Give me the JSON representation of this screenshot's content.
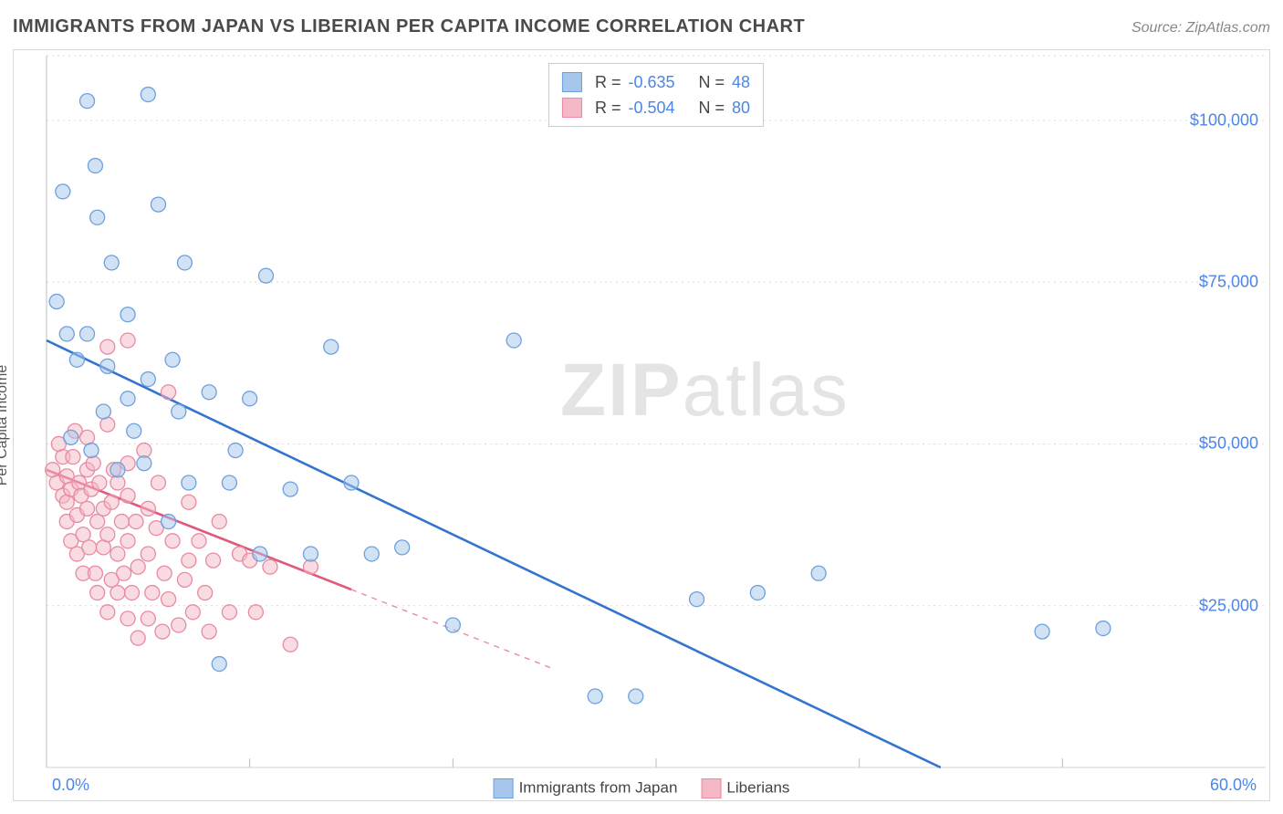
{
  "title": "IMMIGRANTS FROM JAPAN VS LIBERIAN PER CAPITA INCOME CORRELATION CHART",
  "source": "Source: ZipAtlas.com",
  "watermark": {
    "bold": "ZIP",
    "light": "atlas"
  },
  "chart": {
    "type": "scatter",
    "background_color": "#ffffff",
    "grid_color": "#d9d9d9",
    "axis_color": "#888888",
    "ylabel": "Per Capita Income",
    "ylabel_fontsize": 16,
    "tick_color": "#4a86e8",
    "tick_fontsize": 18,
    "xlim": [
      0,
      60
    ],
    "ylim": [
      0,
      110000
    ],
    "xticks_labeled": {
      "0": "0.0%",
      "60": "60.0%"
    },
    "xticks_minor": [
      10,
      20,
      30,
      40,
      50
    ],
    "yticks": [
      25000,
      50000,
      75000,
      100000
    ],
    "ytick_labels": [
      "$25,000",
      "$50,000",
      "$75,000",
      "$100,000"
    ],
    "grid_dash": "2,4",
    "marker_radius": 8,
    "marker_opacity": 0.5,
    "marker_stroke_width": 1.3,
    "line_width": 2.6
  },
  "series": [
    {
      "name": "Immigrants from Japan",
      "color_fill": "#a6c6ec",
      "color_stroke": "#6da0de",
      "line_color": "#3374cf",
      "R": "-0.635",
      "N": "48",
      "trend": {
        "x1": 0,
        "y1": 66000,
        "x2": 44,
        "y2": 0
      },
      "trend_dash_x": 60,
      "points": [
        [
          0.5,
          72000
        ],
        [
          0.8,
          89000
        ],
        [
          1.0,
          67000
        ],
        [
          1.2,
          51000
        ],
        [
          1.5,
          63000
        ],
        [
          2.0,
          103000
        ],
        [
          2.0,
          67000
        ],
        [
          2.2,
          49000
        ],
        [
          2.4,
          93000
        ],
        [
          2.5,
          85000
        ],
        [
          2.8,
          55000
        ],
        [
          3.0,
          62000
        ],
        [
          3.2,
          78000
        ],
        [
          3.5,
          46000
        ],
        [
          4.0,
          70000
        ],
        [
          4.0,
          57000
        ],
        [
          4.3,
          52000
        ],
        [
          4.8,
          47000
        ],
        [
          5.0,
          104000
        ],
        [
          5.0,
          60000
        ],
        [
          5.5,
          87000
        ],
        [
          6.0,
          38000
        ],
        [
          6.2,
          63000
        ],
        [
          6.5,
          55000
        ],
        [
          6.8,
          78000
        ],
        [
          7.0,
          44000
        ],
        [
          8.0,
          58000
        ],
        [
          8.5,
          16000
        ],
        [
          9.0,
          44000
        ],
        [
          9.3,
          49000
        ],
        [
          10.0,
          57000
        ],
        [
          10.5,
          33000
        ],
        [
          10.8,
          76000
        ],
        [
          12.0,
          43000
        ],
        [
          13.0,
          33000
        ],
        [
          14.0,
          65000
        ],
        [
          15.0,
          44000
        ],
        [
          16.0,
          33000
        ],
        [
          17.5,
          34000
        ],
        [
          20.0,
          22000
        ],
        [
          23.0,
          66000
        ],
        [
          27.0,
          11000
        ],
        [
          29.0,
          11000
        ],
        [
          32.0,
          26000
        ],
        [
          35.0,
          27000
        ],
        [
          38.0,
          30000
        ],
        [
          49.0,
          21000
        ],
        [
          52.0,
          21500
        ]
      ]
    },
    {
      "name": "Liberians",
      "color_fill": "#f4b8c6",
      "color_stroke": "#e88aa2",
      "line_color": "#e05a7a",
      "R": "-0.504",
      "N": "80",
      "trend": {
        "x1": 0,
        "y1": 46000,
        "x2": 15,
        "y2": 27500
      },
      "trend_dash_x": 25,
      "points": [
        [
          0.3,
          46000
        ],
        [
          0.5,
          44000
        ],
        [
          0.6,
          50000
        ],
        [
          0.8,
          42000
        ],
        [
          0.8,
          48000
        ],
        [
          1.0,
          38000
        ],
        [
          1.0,
          41000
        ],
        [
          1.0,
          45000
        ],
        [
          1.2,
          35000
        ],
        [
          1.2,
          43000
        ],
        [
          1.3,
          48000
        ],
        [
          1.4,
          52000
        ],
        [
          1.5,
          39000
        ],
        [
          1.5,
          33000
        ],
        [
          1.6,
          44000
        ],
        [
          1.7,
          42000
        ],
        [
          1.8,
          36000
        ],
        [
          1.8,
          30000
        ],
        [
          2.0,
          46000
        ],
        [
          2.0,
          40000
        ],
        [
          2.0,
          51000
        ],
        [
          2.1,
          34000
        ],
        [
          2.2,
          43000
        ],
        [
          2.3,
          47000
        ],
        [
          2.4,
          30000
        ],
        [
          2.5,
          38000
        ],
        [
          2.5,
          27000
        ],
        [
          2.6,
          44000
        ],
        [
          2.8,
          34000
        ],
        [
          2.8,
          40000
        ],
        [
          3.0,
          53000
        ],
        [
          3.0,
          36000
        ],
        [
          3.0,
          24000
        ],
        [
          3.0,
          65000
        ],
        [
          3.2,
          29000
        ],
        [
          3.2,
          41000
        ],
        [
          3.3,
          46000
        ],
        [
          3.5,
          33000
        ],
        [
          3.5,
          44000
        ],
        [
          3.5,
          27000
        ],
        [
          3.7,
          38000
        ],
        [
          3.8,
          30000
        ],
        [
          4.0,
          42000
        ],
        [
          4.0,
          23000
        ],
        [
          4.0,
          35000
        ],
        [
          4.0,
          47000
        ],
        [
          4.0,
          66000
        ],
        [
          4.2,
          27000
        ],
        [
          4.4,
          38000
        ],
        [
          4.5,
          20000
        ],
        [
          4.5,
          31000
        ],
        [
          4.8,
          49000
        ],
        [
          5.0,
          23000
        ],
        [
          5.0,
          33000
        ],
        [
          5.0,
          40000
        ],
        [
          5.2,
          27000
        ],
        [
          5.4,
          37000
        ],
        [
          5.5,
          44000
        ],
        [
          5.7,
          21000
        ],
        [
          5.8,
          30000
        ],
        [
          6.0,
          26000
        ],
        [
          6.0,
          58000
        ],
        [
          6.2,
          35000
        ],
        [
          6.5,
          22000
        ],
        [
          6.8,
          29000
        ],
        [
          7.0,
          32000
        ],
        [
          7.0,
          41000
        ],
        [
          7.2,
          24000
        ],
        [
          7.5,
          35000
        ],
        [
          7.8,
          27000
        ],
        [
          8.0,
          21000
        ],
        [
          8.2,
          32000
        ],
        [
          8.5,
          38000
        ],
        [
          9.0,
          24000
        ],
        [
          9.5,
          33000
        ],
        [
          10.0,
          32000
        ],
        [
          10.3,
          24000
        ],
        [
          11.0,
          31000
        ],
        [
          12.0,
          19000
        ],
        [
          13.0,
          31000
        ]
      ]
    }
  ],
  "top_legend": {
    "rows": [
      {
        "series_idx": 0,
        "R_label": "R =",
        "N_label": "N ="
      },
      {
        "series_idx": 1,
        "R_label": "R =",
        "N_label": "N ="
      }
    ]
  },
  "bottom_legend": {
    "items": [
      {
        "series_idx": 0
      },
      {
        "series_idx": 1
      }
    ]
  }
}
